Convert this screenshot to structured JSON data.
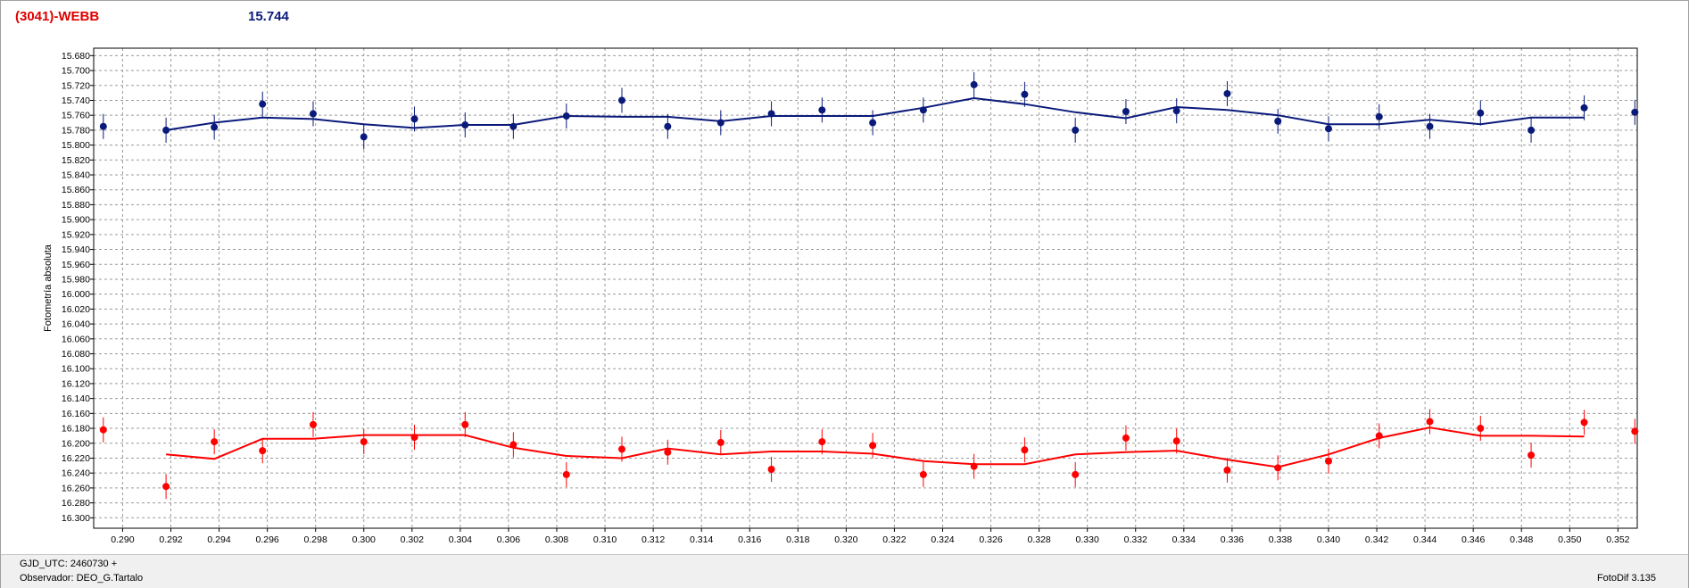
{
  "header": {
    "object_name": "(3041)-WEBB",
    "magnitude": "15.744",
    "colors": {
      "object_name": "#e00000",
      "magnitude": "#0a1a7a"
    }
  },
  "footer": {
    "gjd_label": "GJD_UTC: 2460730 +",
    "observer_label": "Observador: DEO_G.Tartalo",
    "software": "FotoDif 3.135"
  },
  "chart_data": {
    "type": "scatter",
    "ylabel": "Fotometría absoluta",
    "xlabel": "",
    "xlim": [
      0.2888,
      0.3528
    ],
    "ylim": [
      16.314,
      15.67
    ],
    "y_inverted": true,
    "grid": true,
    "x_ticks": [
      "0.290",
      "0.292",
      "0.294",
      "0.296",
      "0.298",
      "0.300",
      "0.302",
      "0.304",
      "0.306",
      "0.308",
      "0.310",
      "0.312",
      "0.314",
      "0.316",
      "0.318",
      "0.320",
      "0.322",
      "0.324",
      "0.326",
      "0.328",
      "0.330",
      "0.332",
      "0.334",
      "0.336",
      "0.338",
      "0.340",
      "0.342",
      "0.344",
      "0.346",
      "0.348",
      "0.350",
      "0.352"
    ],
    "y_ticks": [
      "15.680",
      "15.700",
      "15.720",
      "15.740",
      "15.760",
      "15.780",
      "15.800",
      "15.820",
      "15.840",
      "15.860",
      "15.880",
      "15.900",
      "15.920",
      "15.940",
      "15.960",
      "15.980",
      "16.000",
      "16.020",
      "16.040",
      "16.060",
      "16.080",
      "16.100",
      "16.120",
      "16.140",
      "16.160",
      "16.180",
      "16.200",
      "16.220",
      "16.240",
      "16.260",
      "16.280",
      "16.300"
    ],
    "series": [
      {
        "color": "#0a1a7a",
        "points": [
          {
            "x": 0.2892,
            "y": 15.775
          },
          {
            "x": 0.2918,
            "y": 15.78
          },
          {
            "x": 0.2938,
            "y": 15.776
          },
          {
            "x": 0.2958,
            "y": 15.745
          },
          {
            "x": 0.2979,
            "y": 15.758
          },
          {
            "x": 0.3,
            "y": 15.789
          },
          {
            "x": 0.3021,
            "y": 15.765
          },
          {
            "x": 0.3042,
            "y": 15.773
          },
          {
            "x": 0.3062,
            "y": 15.775
          },
          {
            "x": 0.3084,
            "y": 15.761
          },
          {
            "x": 0.3107,
            "y": 15.74
          },
          {
            "x": 0.3126,
            "y": 15.775
          },
          {
            "x": 0.3148,
            "y": 15.77
          },
          {
            "x": 0.3169,
            "y": 15.758
          },
          {
            "x": 0.319,
            "y": 15.753
          },
          {
            "x": 0.3211,
            "y": 15.77
          },
          {
            "x": 0.3232,
            "y": 15.753
          },
          {
            "x": 0.3253,
            "y": 15.719
          },
          {
            "x": 0.3274,
            "y": 15.732
          },
          {
            "x": 0.3295,
            "y": 15.78
          },
          {
            "x": 0.3316,
            "y": 15.755
          },
          {
            "x": 0.3337,
            "y": 15.754
          },
          {
            "x": 0.3358,
            "y": 15.731
          },
          {
            "x": 0.3379,
            "y": 15.768
          },
          {
            "x": 0.34,
            "y": 15.778
          },
          {
            "x": 0.3421,
            "y": 15.762
          },
          {
            "x": 0.3442,
            "y": 15.775
          },
          {
            "x": 0.3463,
            "y": 15.757
          },
          {
            "x": 0.3484,
            "y": 15.78
          },
          {
            "x": 0.3506,
            "y": 15.75
          },
          {
            "x": 0.3527,
            "y": 15.756
          }
        ],
        "fit": [
          {
            "x": 0.2918,
            "y": 15.78
          },
          {
            "x": 0.2938,
            "y": 15.77
          },
          {
            "x": 0.2958,
            "y": 15.763
          },
          {
            "x": 0.2979,
            "y": 15.765
          },
          {
            "x": 0.3,
            "y": 15.772
          },
          {
            "x": 0.3021,
            "y": 15.777
          },
          {
            "x": 0.3042,
            "y": 15.773
          },
          {
            "x": 0.3062,
            "y": 15.773
          },
          {
            "x": 0.3084,
            "y": 15.761
          },
          {
            "x": 0.3107,
            "y": 15.762
          },
          {
            "x": 0.3126,
            "y": 15.762
          },
          {
            "x": 0.3148,
            "y": 15.768
          },
          {
            "x": 0.3169,
            "y": 15.761
          },
          {
            "x": 0.319,
            "y": 15.761
          },
          {
            "x": 0.3211,
            "y": 15.761
          },
          {
            "x": 0.3232,
            "y": 15.75
          },
          {
            "x": 0.3253,
            "y": 15.737
          },
          {
            "x": 0.3274,
            "y": 15.745
          },
          {
            "x": 0.3295,
            "y": 15.756
          },
          {
            "x": 0.3316,
            "y": 15.764
          },
          {
            "x": 0.3337,
            "y": 15.749
          },
          {
            "x": 0.3358,
            "y": 15.753
          },
          {
            "x": 0.3379,
            "y": 15.76
          },
          {
            "x": 0.34,
            "y": 15.772
          },
          {
            "x": 0.3421,
            "y": 15.772
          },
          {
            "x": 0.3442,
            "y": 15.766
          },
          {
            "x": 0.3463,
            "y": 15.772
          },
          {
            "x": 0.3484,
            "y": 15.763
          },
          {
            "x": 0.3506,
            "y": 15.763
          }
        ]
      },
      {
        "color": "#ff0000",
        "points": [
          {
            "x": 0.2892,
            "y": 16.182
          },
          {
            "x": 0.2918,
            "y": 16.258
          },
          {
            "x": 0.2938,
            "y": 16.198
          },
          {
            "x": 0.2958,
            "y": 16.21
          },
          {
            "x": 0.2979,
            "y": 16.175
          },
          {
            "x": 0.3,
            "y": 16.198
          },
          {
            "x": 0.3021,
            "y": 16.192
          },
          {
            "x": 0.3042,
            "y": 16.175
          },
          {
            "x": 0.3062,
            "y": 16.202
          },
          {
            "x": 0.3084,
            "y": 16.242
          },
          {
            "x": 0.3107,
            "y": 16.208
          },
          {
            "x": 0.3126,
            "y": 16.212
          },
          {
            "x": 0.3148,
            "y": 16.199
          },
          {
            "x": 0.3169,
            "y": 16.235
          },
          {
            "x": 0.319,
            "y": 16.198
          },
          {
            "x": 0.3211,
            "y": 16.203
          },
          {
            "x": 0.3232,
            "y": 16.242
          },
          {
            "x": 0.3253,
            "y": 16.231
          },
          {
            "x": 0.3274,
            "y": 16.209
          },
          {
            "x": 0.3295,
            "y": 16.242
          },
          {
            "x": 0.3316,
            "y": 16.193
          },
          {
            "x": 0.3337,
            "y": 16.197
          },
          {
            "x": 0.3358,
            "y": 16.236
          },
          {
            "x": 0.3379,
            "y": 16.233
          },
          {
            "x": 0.34,
            "y": 16.224
          },
          {
            "x": 0.3421,
            "y": 16.19
          },
          {
            "x": 0.3442,
            "y": 16.171
          },
          {
            "x": 0.3463,
            "y": 16.18
          },
          {
            "x": 0.3484,
            "y": 16.216
          },
          {
            "x": 0.3506,
            "y": 16.172
          },
          {
            "x": 0.3527,
            "y": 16.184
          }
        ],
        "fit": [
          {
            "x": 0.2918,
            "y": 16.215
          },
          {
            "x": 0.2938,
            "y": 16.221
          },
          {
            "x": 0.2958,
            "y": 16.194
          },
          {
            "x": 0.2979,
            "y": 16.194
          },
          {
            "x": 0.3,
            "y": 16.189
          },
          {
            "x": 0.3021,
            "y": 16.189
          },
          {
            "x": 0.3042,
            "y": 16.189
          },
          {
            "x": 0.3062,
            "y": 16.206
          },
          {
            "x": 0.3084,
            "y": 16.217
          },
          {
            "x": 0.3107,
            "y": 16.22
          },
          {
            "x": 0.3126,
            "y": 16.207
          },
          {
            "x": 0.3148,
            "y": 16.215
          },
          {
            "x": 0.3169,
            "y": 16.211
          },
          {
            "x": 0.319,
            "y": 16.211
          },
          {
            "x": 0.3211,
            "y": 16.214
          },
          {
            "x": 0.3232,
            "y": 16.224
          },
          {
            "x": 0.3253,
            "y": 16.228
          },
          {
            "x": 0.3274,
            "y": 16.228
          },
          {
            "x": 0.3295,
            "y": 16.215
          },
          {
            "x": 0.3316,
            "y": 16.212
          },
          {
            "x": 0.3337,
            "y": 16.21
          },
          {
            "x": 0.3358,
            "y": 16.222
          },
          {
            "x": 0.3379,
            "y": 16.232
          },
          {
            "x": 0.34,
            "y": 16.215
          },
          {
            "x": 0.3421,
            "y": 16.193
          },
          {
            "x": 0.3442,
            "y": 16.179
          },
          {
            "x": 0.3463,
            "y": 16.19
          },
          {
            "x": 0.3484,
            "y": 16.19
          },
          {
            "x": 0.3506,
            "y": 16.191
          }
        ]
      }
    ]
  }
}
